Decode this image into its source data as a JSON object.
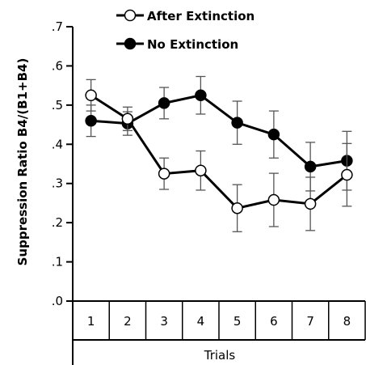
{
  "chart_data": {
    "type": "line",
    "xlabel": "Trials",
    "ylabel": "Suppression Ratio  B4/(B1+B4)",
    "categories": [
      "1",
      "2",
      "3",
      "4",
      "5",
      "6",
      "7",
      "8"
    ],
    "ylim": [
      0,
      0.7
    ],
    "yticks": [
      ".0",
      ".1",
      ".2",
      ".3",
      ".4",
      ".5",
      ".6",
      ".7"
    ],
    "legend_position": "top-center",
    "series": [
      {
        "name": "After Extinction",
        "marker": "open-circle",
        "values": [
          0.525,
          0.465,
          0.325,
          0.333,
          0.237,
          0.258,
          0.248,
          0.322
        ],
        "error": [
          0.04,
          0.03,
          0.04,
          0.05,
          0.06,
          0.068,
          0.068,
          0.08
        ]
      },
      {
        "name": "No Extinction",
        "marker": "filled-circle",
        "values": [
          0.46,
          0.453,
          0.505,
          0.525,
          0.455,
          0.425,
          0.343,
          0.358
        ],
        "error": [
          0.04,
          0.03,
          0.04,
          0.048,
          0.055,
          0.06,
          0.062,
          0.075
        ]
      }
    ]
  }
}
